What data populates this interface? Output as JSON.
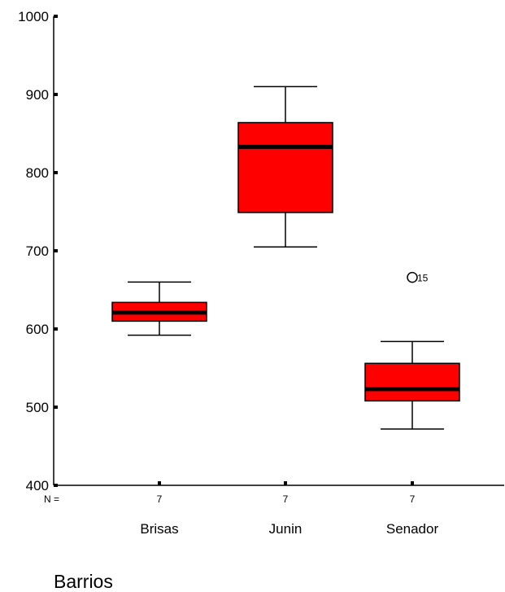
{
  "chart_data": {
    "type": "boxplot",
    "title": "",
    "xlabel": "Barrios",
    "ylabel": "",
    "ylim": [
      400,
      1000
    ],
    "yticks": [
      400,
      500,
      600,
      700,
      800,
      900,
      1000
    ],
    "categories": [
      "Brisas",
      "Junin",
      "Senador"
    ],
    "n_prefix": "N =",
    "n_values": [
      "7",
      "7",
      "7"
    ],
    "boxes": [
      {
        "category": "Brisas",
        "whisker_low": 592,
        "q1": 610,
        "median": 621,
        "q3": 634,
        "whisker_high": 660
      },
      {
        "category": "Junin",
        "whisker_low": 705,
        "q1": 749,
        "median": 833,
        "q3": 864,
        "whisker_high": 910
      },
      {
        "category": "Senador",
        "whisker_low": 472,
        "q1": 508,
        "median": 523,
        "q3": 556,
        "whisker_high": 584
      }
    ],
    "outliers": [
      {
        "category": "Senador",
        "value": 666,
        "label": "15"
      }
    ],
    "colors": {
      "box_fill": "#ff0000",
      "line": "#000000"
    },
    "grid": false
  }
}
